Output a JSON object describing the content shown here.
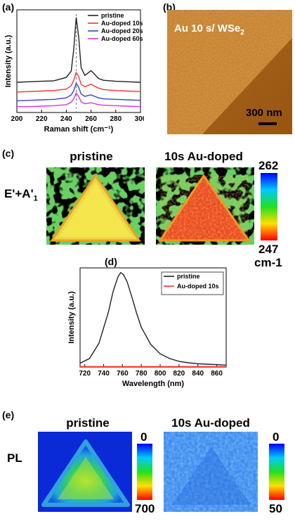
{
  "panels": {
    "a": {
      "label": "(a)"
    },
    "b": {
      "label": "(b)",
      "caption_main": "Au 10 s/ WSe",
      "caption_sub": "2",
      "scalebar": "300 nm"
    },
    "c": {
      "label": "(c)",
      "left_title": "pristine",
      "right_title": "10s Au-doped",
      "row_label_main": "E'+A'",
      "row_label_sub": "1",
      "scale_top": "262",
      "scale_bottom": "247",
      "scale_unit": "cm-1"
    },
    "d": {
      "label": "(d)"
    },
    "e": {
      "label": "(e)",
      "left_title": "pristine",
      "right_title": "10s Au-doped",
      "row_label": "PL",
      "left_scale_top": "0",
      "left_scale_bottom": "700",
      "right_scale_top": "0",
      "right_scale_bottom": "50"
    }
  },
  "colors": {
    "pristine": "#222222",
    "au10": "#ff3333",
    "au20": "#3344dd",
    "au60": "#dd33dd"
  },
  "chart_data": [
    {
      "type": "line",
      "panel": "a",
      "xlabel": "Raman shift (cm⁻¹)",
      "ylabel": "Intensity (a.u.)",
      "xlim": [
        200,
        300
      ],
      "xticks": [
        200,
        220,
        240,
        260,
        280,
        300
      ],
      "yticks": [],
      "grid": false,
      "legend_position": "top-right",
      "series": [
        {
          "name": "pristine",
          "color": "#222222",
          "x": [
            200,
            210,
            220,
            230,
            240,
            244,
            246,
            248,
            250,
            252,
            255,
            258,
            260,
            263,
            266,
            270,
            280,
            290,
            300
          ],
          "y": [
            0.62,
            0.63,
            0.64,
            0.65,
            0.72,
            0.85,
            1.3,
            1.95,
            1.55,
            0.92,
            0.76,
            0.82,
            0.86,
            0.78,
            0.7,
            0.66,
            0.64,
            0.63,
            0.62
          ]
        },
        {
          "name": "Au-doped 10s",
          "color": "#ff3333",
          "x": [
            200,
            210,
            220,
            230,
            240,
            244,
            246,
            248,
            250,
            252,
            255,
            258,
            260,
            263,
            266,
            270,
            280,
            290,
            300
          ],
          "y": [
            0.42,
            0.43,
            0.44,
            0.45,
            0.48,
            0.55,
            0.66,
            0.82,
            0.74,
            0.58,
            0.53,
            0.56,
            0.58,
            0.54,
            0.5,
            0.47,
            0.45,
            0.44,
            0.43
          ]
        },
        {
          "name": "Au-doped 20s",
          "color": "#3344dd",
          "x": [
            200,
            210,
            220,
            230,
            240,
            244,
            246,
            248,
            250,
            252,
            255,
            258,
            260,
            263,
            266,
            270,
            280,
            290,
            300
          ],
          "y": [
            0.24,
            0.25,
            0.26,
            0.27,
            0.3,
            0.36,
            0.45,
            0.6,
            0.52,
            0.38,
            0.33,
            0.35,
            0.36,
            0.33,
            0.3,
            0.28,
            0.27,
            0.26,
            0.25
          ]
        },
        {
          "name": "Au-doped 60s",
          "color": "#dd33dd",
          "x": [
            200,
            210,
            220,
            230,
            240,
            244,
            246,
            248,
            250,
            252,
            255,
            258,
            260,
            263,
            266,
            270,
            280,
            290,
            300
          ],
          "y": [
            0.12,
            0.12,
            0.13,
            0.14,
            0.16,
            0.21,
            0.28,
            0.4,
            0.33,
            0.22,
            0.18,
            0.19,
            0.2,
            0.18,
            0.16,
            0.15,
            0.14,
            0.13,
            0.12
          ]
        }
      ],
      "annotations": [
        "dashed vertical line near 248"
      ]
    },
    {
      "type": "line",
      "panel": "d",
      "xlabel": "Wavelength (nm)",
      "ylabel": "Intensity (a.u.)",
      "xlim": [
        715,
        870
      ],
      "xticks": [
        720,
        740,
        760,
        780,
        800,
        820,
        840,
        860
      ],
      "yticks": [],
      "grid": false,
      "legend_position": "top-right",
      "series": [
        {
          "name": "pristine",
          "color": "#222222",
          "x": [
            715,
            725,
            735,
            745,
            750,
            755,
            758,
            761,
            765,
            770,
            775,
            780,
            790,
            800,
            810,
            820,
            830,
            840,
            850,
            860,
            870
          ],
          "y": [
            0.04,
            0.09,
            0.25,
            0.58,
            0.8,
            0.95,
            1.0,
            0.98,
            0.9,
            0.74,
            0.57,
            0.42,
            0.24,
            0.14,
            0.09,
            0.06,
            0.045,
            0.035,
            0.03,
            0.025,
            0.02
          ]
        },
        {
          "name": "Au-doped 10s",
          "color": "#ff3333",
          "x": [
            715,
            870
          ],
          "y": [
            0.005,
            0.005
          ]
        }
      ]
    }
  ]
}
